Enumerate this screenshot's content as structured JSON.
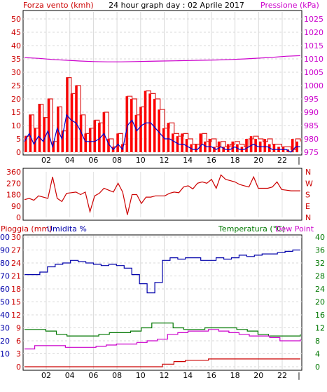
{
  "chart_data": [
    {
      "type": "bar",
      "title": "24 hour graph day : 02 Aprile 2017",
      "left_axis_label": "Forza vento (kmh)",
      "right_axis_label": "Pressione (kPa)",
      "x_ticks": [
        "02",
        "04",
        "06",
        "08",
        "10",
        "12",
        "14",
        "16",
        "18",
        "20",
        "22"
      ],
      "x_end_tick": "|",
      "left_ticks": [
        "0",
        "5",
        "10",
        "15",
        "20",
        "25",
        "30",
        "35",
        "40",
        "45",
        "50"
      ],
      "right_ticks": [
        "975",
        "980",
        "985",
        "990",
        "995",
        "1000",
        "1005",
        "1010",
        "1015",
        "1020",
        "1025"
      ],
      "ylim_left": [
        0,
        50
      ],
      "ylim_right": [
        975,
        1025
      ],
      "gust_color": "#ff0000",
      "avg_color": "#0000cc",
      "pressure_color": "#cc00cc",
      "series": [
        {
          "name": "raffica",
          "values": [
            6,
            14,
            9,
            18,
            13,
            20,
            4,
            17,
            8,
            28,
            22,
            25,
            14,
            7,
            9,
            12,
            11,
            15,
            5,
            2,
            7,
            3,
            21,
            20,
            14,
            17,
            23,
            22,
            20,
            16,
            9,
            11,
            7,
            6,
            7,
            5,
            3,
            3,
            7,
            4,
            5,
            2,
            4,
            2,
            3,
            4,
            3,
            2,
            5,
            6,
            5,
            4,
            5,
            3,
            3,
            2,
            2,
            1,
            5,
            4
          ]
        },
        {
          "name": "media",
          "values": [
            4,
            7,
            3,
            6,
            4,
            8,
            2,
            9,
            5,
            14,
            12,
            11,
            8,
            4,
            4,
            4,
            5,
            7,
            3,
            1,
            3,
            1,
            10,
            12,
            8,
            10,
            11,
            11,
            9,
            7,
            5,
            5,
            4,
            3,
            3,
            2,
            1,
            1,
            3,
            2,
            2,
            1,
            2,
            1,
            1,
            2,
            1,
            1,
            2,
            3,
            2,
            2,
            2,
            1,
            1,
            1,
            1,
            0,
            2,
            2
          ]
        },
        {
          "name": "pressione",
          "values": [
            1010.5,
            1010.2,
            1009.8,
            1009.5,
            1009.2,
            1009.0,
            1008.9,
            1008.9,
            1009.0,
            1009.1,
            1009.2,
            1009.3,
            1009.4,
            1009.5,
            1009.6,
            1009.8,
            1010.0,
            1010.3,
            1010.6,
            1011.0,
            1011.2
          ]
        }
      ]
    },
    {
      "type": "line",
      "title": "",
      "left_ticks": [
        "360",
        "270",
        "180",
        "90",
        "0"
      ],
      "right_ticks": [
        "N",
        "W",
        "S",
        "E",
        "N"
      ],
      "ylim": [
        0,
        360
      ],
      "color": "#cc0000",
      "series": [
        {
          "name": "direzione",
          "values": [
            140,
            150,
            135,
            170,
            160,
            150,
            320,
            150,
            125,
            190,
            195,
            200,
            180,
            200,
            45,
            170,
            190,
            230,
            215,
            200,
            270,
            200,
            20,
            180,
            180,
            110,
            160,
            160,
            170,
            170,
            170,
            190,
            200,
            195,
            240,
            250,
            225,
            270,
            280,
            270,
            300,
            230,
            335,
            300,
            290,
            280,
            260,
            250,
            240,
            320,
            230,
            230,
            230,
            240,
            280,
            220,
            215,
            210,
            210,
            210
          ]
        }
      ]
    },
    {
      "type": "line",
      "title": "",
      "left_axis_label_rain": "Pioggia (mm)",
      "left_axis_label_hum": "Umidita %",
      "right_axis_label_temp": "Temperatura (°C)",
      "right_axis_label_dew": "Dew Point",
      "rain_ticks": [
        "0",
        "3",
        "6",
        "9",
        "12",
        "15",
        "18",
        "21",
        "24",
        "27",
        "30"
      ],
      "hum_ticks": [
        "10",
        "20",
        "30",
        "40",
        "50",
        "60",
        "70",
        "80",
        "90",
        "100"
      ],
      "temp_ticks": [
        "0",
        "4",
        "8",
        "12",
        "16",
        "20",
        "24",
        "28",
        "32",
        "36",
        "40"
      ],
      "x_ticks": [
        "02",
        "04",
        "06",
        "08",
        "10",
        "12",
        "14",
        "16",
        "18",
        "20",
        "22"
      ],
      "x_end_tick": "|",
      "ylim_rain": [
        0,
        30
      ],
      "ylim_hum": [
        0,
        100
      ],
      "ylim_temp": [
        0,
        40
      ],
      "rain_color": "#cc0000",
      "hum_color": "#0000aa",
      "temp_color": "#007700",
      "dew_color": "#cc00cc",
      "series": [
        {
          "name": "pioggia",
          "values": [
            0,
            0,
            0,
            0,
            0,
            0,
            0,
            0,
            0,
            0,
            0,
            0,
            0.6,
            1.2,
            1.5,
            1.5,
            1.8,
            1.8,
            1.8,
            1.8,
            1.8,
            1.8,
            1.8,
            1.8,
            1.8
          ]
        },
        {
          "name": "umidita",
          "values": [
            71,
            71,
            73,
            77,
            79,
            80,
            82,
            81,
            80,
            79,
            78,
            79,
            78,
            76,
            71,
            64,
            57,
            65,
            82,
            84,
            83,
            84,
            84,
            82,
            82,
            84,
            83,
            84,
            86,
            85,
            86,
            87,
            87,
            88,
            89,
            90,
            90
          ]
        },
        {
          "name": "temperatura",
          "values": [
            11.5,
            11.5,
            11,
            10,
            9.5,
            9.5,
            9.5,
            10,
            10.5,
            10.5,
            11,
            12,
            13.5,
            13.5,
            12,
            11.5,
            11.5,
            12,
            12,
            12,
            11.5,
            11,
            10,
            9.5,
            9.5,
            9.5,
            10
          ]
        },
        {
          "name": "dew point",
          "values": [
            5.5,
            6.5,
            6.5,
            6.5,
            6,
            6,
            6,
            6.3,
            6.7,
            7,
            7,
            7.5,
            8,
            8.5,
            10,
            10.5,
            11,
            11,
            11.5,
            11,
            10.5,
            10,
            9.5,
            9.5,
            9,
            8,
            8,
            8.5
          ]
        }
      ]
    }
  ]
}
